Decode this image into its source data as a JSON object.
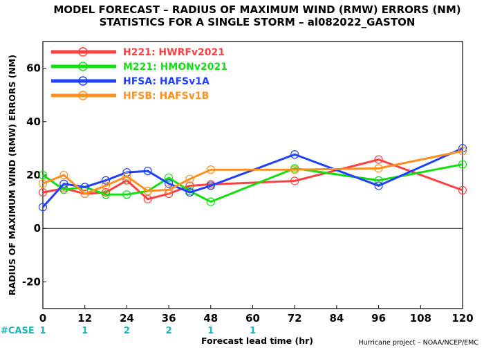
{
  "chart_data": {
    "type": "line",
    "title_line1": "MODEL FORECAST – RADIUS OF MAXIMUM WIND (RMW) ERRORS (NM)",
    "title_line2": "STATISTICS FOR A SINGLE STORM – al082022_GASTON",
    "xlabel": "Forecast lead time (hr)",
    "ylabel": "RADIUS OF MAXIMUM WIND (RMW) ERRORS (NM)",
    "xlim": [
      0,
      120
    ],
    "ylim": [
      -30,
      70
    ],
    "x_ticks": [
      0,
      12,
      24,
      36,
      48,
      60,
      72,
      84,
      96,
      108,
      120
    ],
    "x_tick_labels": [
      "0",
      "12",
      "24",
      "36",
      "48",
      "60",
      "72",
      "84",
      "96",
      "108",
      "120"
    ],
    "y_ticks": [
      -20,
      0,
      20,
      40,
      60
    ],
    "y_tick_labels": [
      "-20",
      "0",
      "20",
      "40",
      "60"
    ],
    "zero_line": true,
    "legend_position": "top-left",
    "series": [
      {
        "name": "H221:  HWRFv2021",
        "color": "#ff4040",
        "x": [
          0,
          6,
          12,
          18,
          24,
          30,
          36,
          42,
          48,
          72,
          96,
          120
        ],
        "y": [
          13.5,
          15.0,
          13.0,
          13.5,
          18.0,
          11.0,
          13.0,
          16.0,
          16.5,
          17.8,
          25.8,
          14.3
        ]
      },
      {
        "name": "M221:  HMONv2021",
        "color": "#10e010",
        "x": [
          0,
          6,
          12,
          18,
          24,
          30,
          36,
          42,
          48,
          72,
          96,
          120
        ],
        "y": [
          20.0,
          14.5,
          15.5,
          12.7,
          12.7,
          14.0,
          19.0,
          14.0,
          10.0,
          22.5,
          18.0,
          24.0
        ]
      },
      {
        "name": "HFSA:  HAFSv1A",
        "color": "#2040ff",
        "x": [
          0,
          6,
          12,
          18,
          24,
          30,
          36,
          42,
          48,
          72,
          96,
          120
        ],
        "y": [
          8.0,
          16.7,
          15.5,
          18.0,
          21.0,
          21.5,
          16.8,
          13.5,
          16.0,
          27.7,
          16.0,
          30.0
        ]
      },
      {
        "name": "HFSB:  HAFSv1B",
        "color": "#ff9020",
        "x": [
          0,
          6,
          12,
          18,
          24,
          30,
          36,
          42,
          48,
          72,
          96,
          120
        ],
        "y": [
          16.8,
          20.0,
          13.0,
          16.0,
          19.5,
          14.0,
          14.5,
          18.5,
          22.0,
          22.0,
          22.5,
          29.0
        ]
      }
    ],
    "case_label": "#CASE",
    "case_counts": [
      {
        "x": 0,
        "label": "1"
      },
      {
        "x": 12,
        "label": "1"
      },
      {
        "x": 24,
        "label": "2"
      },
      {
        "x": 36,
        "label": "2"
      },
      {
        "x": 48,
        "label": "1"
      },
      {
        "x": 60,
        "label": "1"
      }
    ],
    "credit": "Hurricane project – NOAA/NCEP/EMC",
    "colors": {
      "axis": "#000000",
      "case_text": "#1ab8b8"
    }
  }
}
